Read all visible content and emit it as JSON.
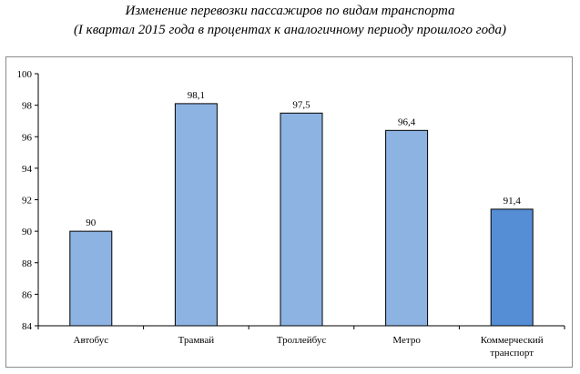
{
  "chart_data": {
    "type": "bar",
    "title": "Изменение перевозки пассажиров по видам транспорта",
    "subtitle": "(I квартал 2015 года в процентах к аналогичному периоду прошлого года)",
    "categories": [
      "Автобус",
      "Трамвай",
      "Троллейбус",
      "Метро",
      "Коммерческий транспорт"
    ],
    "category_lines": [
      [
        "Автобус"
      ],
      [
        "Трамвай"
      ],
      [
        "Троллейбус"
      ],
      [
        "Метро"
      ],
      [
        "Коммерческий",
        "транспорт"
      ]
    ],
    "values": [
      90,
      98.1,
      97.5,
      96.4,
      91.4
    ],
    "value_labels": [
      "90",
      "98,1",
      "97,5",
      "96,4",
      "91,4"
    ],
    "colors": [
      "#8db3e2",
      "#8db3e2",
      "#8db3e2",
      "#8db3e2",
      "#558ed5"
    ],
    "ylim": [
      84,
      100
    ],
    "yticks": [
      84,
      86,
      88,
      90,
      92,
      94,
      96,
      98,
      100
    ],
    "xlabel": "",
    "ylabel": "",
    "grid": false,
    "legend": "none"
  }
}
